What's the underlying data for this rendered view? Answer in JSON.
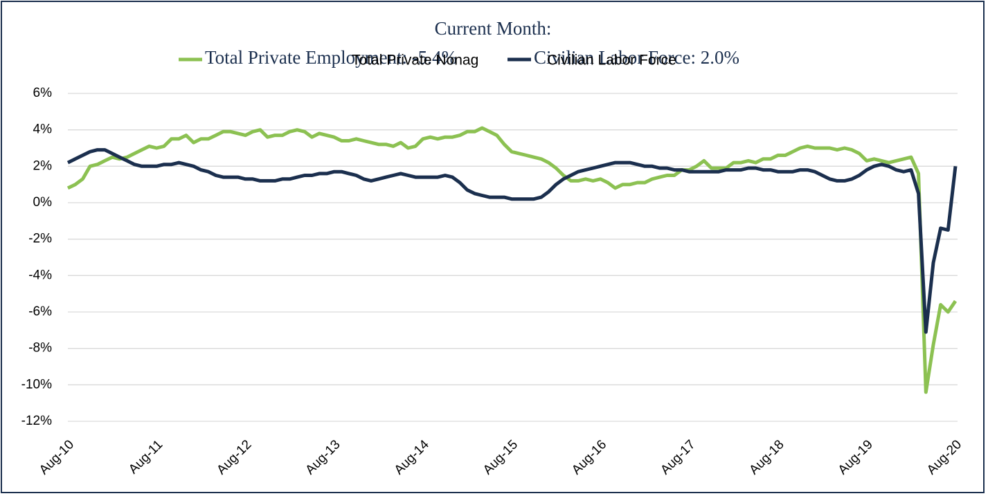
{
  "chart_data": {
    "type": "line",
    "title": "Current Month:",
    "annotations": [
      "Total Private Nonag",
      "Civilian Labor Force"
    ],
    "categories": [
      "Aug-10",
      null,
      null,
      null,
      null,
      null,
      null,
      null,
      null,
      null,
      null,
      null,
      "Aug-11",
      null,
      null,
      null,
      null,
      null,
      null,
      null,
      null,
      null,
      null,
      null,
      "Aug-12",
      null,
      null,
      null,
      null,
      null,
      null,
      null,
      null,
      null,
      null,
      null,
      "Aug-13",
      null,
      null,
      null,
      null,
      null,
      null,
      null,
      null,
      null,
      null,
      null,
      "Aug-14",
      null,
      null,
      null,
      null,
      null,
      null,
      null,
      null,
      null,
      null,
      null,
      "Aug-15",
      null,
      null,
      null,
      null,
      null,
      null,
      null,
      null,
      null,
      null,
      null,
      "Aug-16",
      null,
      null,
      null,
      null,
      null,
      null,
      null,
      null,
      null,
      null,
      null,
      "Aug-17",
      null,
      null,
      null,
      null,
      null,
      null,
      null,
      null,
      null,
      null,
      null,
      "Aug-18",
      null,
      null,
      null,
      null,
      null,
      null,
      null,
      null,
      null,
      null,
      null,
      "Aug-19",
      null,
      null,
      null,
      null,
      null,
      null,
      null,
      null,
      null,
      null,
      null,
      "Aug-20"
    ],
    "series": [
      {
        "name": "Total Private Employment: -5.4%",
        "color": "#8cc152",
        "values": [
          0.8,
          1.0,
          1.3,
          2.0,
          2.1,
          2.3,
          2.5,
          2.4,
          2.5,
          2.7,
          2.9,
          3.1,
          3.0,
          3.1,
          3.5,
          3.5,
          3.7,
          3.3,
          3.5,
          3.5,
          3.7,
          3.9,
          3.9,
          3.8,
          3.7,
          3.9,
          4.0,
          3.6,
          3.7,
          3.7,
          3.9,
          4.0,
          3.9,
          3.6,
          3.8,
          3.7,
          3.6,
          3.4,
          3.4,
          3.5,
          3.4,
          3.3,
          3.2,
          3.2,
          3.1,
          3.3,
          3.0,
          3.1,
          3.5,
          3.6,
          3.5,
          3.6,
          3.6,
          3.7,
          3.9,
          3.9,
          4.1,
          3.9,
          3.7,
          3.2,
          2.8,
          2.7,
          2.6,
          2.5,
          2.4,
          2.2,
          1.9,
          1.5,
          1.2,
          1.2,
          1.3,
          1.2,
          1.3,
          1.1,
          0.8,
          1.0,
          1.0,
          1.1,
          1.1,
          1.3,
          1.4,
          1.5,
          1.5,
          1.8,
          1.8,
          2.0,
          2.3,
          1.9,
          1.9,
          1.9,
          2.2,
          2.2,
          2.3,
          2.2,
          2.4,
          2.4,
          2.6,
          2.6,
          2.8,
          3.0,
          3.1,
          3.0,
          3.0,
          3.0,
          2.9,
          3.0,
          2.9,
          2.7,
          2.3,
          2.4,
          2.3,
          2.2,
          2.3,
          2.4,
          2.5,
          1.6,
          -10.4,
          -7.8,
          -5.6,
          -6.0,
          -5.4
        ]
      },
      {
        "name": "Civilian Labor Force: 2.0%",
        "color": "#1b2f4e",
        "values": [
          2.2,
          2.4,
          2.6,
          2.8,
          2.9,
          2.9,
          2.7,
          2.5,
          2.3,
          2.1,
          2.0,
          2.0,
          2.0,
          2.1,
          2.1,
          2.2,
          2.1,
          2.0,
          1.8,
          1.7,
          1.5,
          1.4,
          1.4,
          1.4,
          1.3,
          1.3,
          1.2,
          1.2,
          1.2,
          1.3,
          1.3,
          1.4,
          1.5,
          1.5,
          1.6,
          1.6,
          1.7,
          1.7,
          1.6,
          1.5,
          1.3,
          1.2,
          1.3,
          1.4,
          1.5,
          1.6,
          1.5,
          1.4,
          1.4,
          1.4,
          1.4,
          1.5,
          1.4,
          1.1,
          0.7,
          0.5,
          0.4,
          0.3,
          0.3,
          0.3,
          0.2,
          0.2,
          0.2,
          0.2,
          0.3,
          0.6,
          1.0,
          1.3,
          1.5,
          1.7,
          1.8,
          1.9,
          2.0,
          2.1,
          2.2,
          2.2,
          2.2,
          2.1,
          2.0,
          2.0,
          1.9,
          1.9,
          1.8,
          1.8,
          1.7,
          1.7,
          1.7,
          1.7,
          1.7,
          1.8,
          1.8,
          1.8,
          1.9,
          1.9,
          1.8,
          1.8,
          1.7,
          1.7,
          1.7,
          1.8,
          1.8,
          1.7,
          1.5,
          1.3,
          1.2,
          1.2,
          1.3,
          1.5,
          1.8,
          2.0,
          2.1,
          2.0,
          1.8,
          1.7,
          1.8,
          0.5,
          -7.1,
          -3.3,
          -1.4,
          -1.5,
          2.0
        ]
      }
    ],
    "ylim": [
      -12,
      6
    ],
    "yticks": [
      {
        "value": -12,
        "label": "-12%"
      },
      {
        "value": -10,
        "label": "-10%"
      },
      {
        "value": -8,
        "label": "-8%"
      },
      {
        "value": -6,
        "label": "-6%"
      },
      {
        "value": -4,
        "label": "-4%"
      },
      {
        "value": -2,
        "label": "-2%"
      },
      {
        "value": 0,
        "label": "0%"
      },
      {
        "value": 2,
        "label": "2%"
      },
      {
        "value": 4,
        "label": "4%"
      },
      {
        "value": 6,
        "label": "6%"
      }
    ],
    "grid": true
  }
}
